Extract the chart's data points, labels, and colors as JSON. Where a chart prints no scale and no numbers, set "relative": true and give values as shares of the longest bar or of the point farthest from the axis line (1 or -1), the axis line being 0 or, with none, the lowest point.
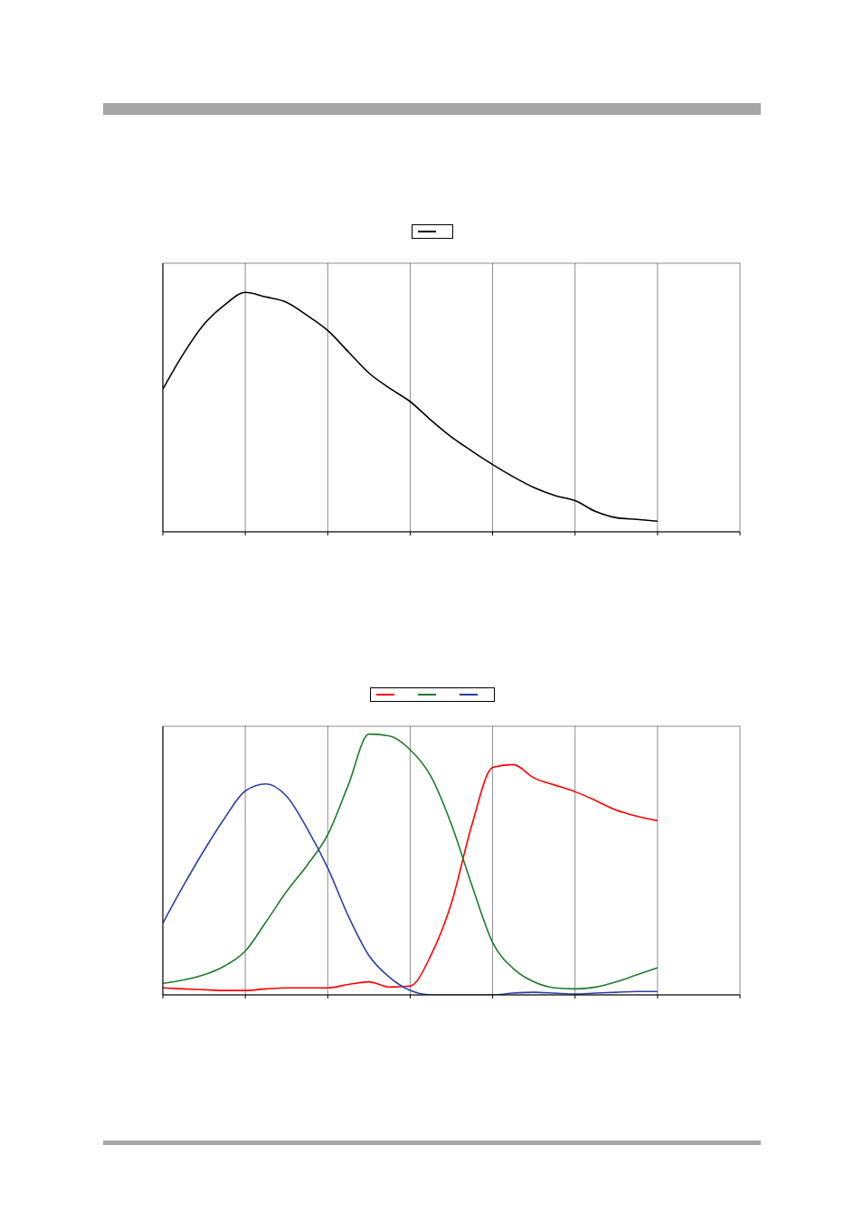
{
  "chart_data": [
    {
      "type": "line",
      "relative": true,
      "grid": true,
      "categories": [
        null,
        null,
        null,
        null,
        null,
        null,
        null,
        null,
        null,
        null,
        null,
        null,
        null,
        null,
        null,
        null,
        null,
        null,
        null,
        null,
        null,
        null,
        null,
        null,
        null,
        null,
        null,
        null,
        null
      ],
      "series": [
        {
          "color": "#000000",
          "values": [
            0.596,
            0.744,
            0.867,
            0.948,
            1,
            0.981,
            0.959,
            0.904,
            0.841,
            0.752,
            0.663,
            0.6,
            0.544,
            0.467,
            0.396,
            0.337,
            0.281,
            0.23,
            0.185,
            0.152,
            0.13,
            0.085,
            0.059,
            0.052,
            0.044,
            null,
            null,
            null,
            null
          ]
        }
      ]
    },
    {
      "type": "line",
      "relative": true,
      "grid": true,
      "categories": [
        null,
        null,
        null,
        null,
        null,
        null,
        null,
        null,
        null,
        null,
        null,
        null,
        null,
        null,
        null,
        null,
        null,
        null,
        null,
        null,
        null,
        null,
        null,
        null,
        null,
        null,
        null,
        null,
        null
      ],
      "series": [
        {
          "color": "#ff0000",
          "values": [
            0.027,
            0.023,
            0.02,
            0.017,
            0.017,
            0.023,
            0.027,
            0.027,
            0.027,
            0.04,
            0.05,
            0.03,
            0.034,
            0.151,
            0.352,
            0.654,
            0.872,
            0.883,
            0.832,
            0.805,
            0.779,
            0.745,
            0.708,
            0.685,
            0.668,
            null,
            null,
            null,
            null
          ]
        },
        {
          "color": "#1e7b2e",
          "values": [
            0.044,
            0.057,
            0.077,
            0.111,
            0.168,
            0.279,
            0.396,
            0.497,
            0.614,
            0.805,
            1,
            0.993,
            0.94,
            0.839,
            0.654,
            0.419,
            0.201,
            0.101,
            0.05,
            0.027,
            0.023,
            0.03,
            0.05,
            0.077,
            0.104,
            null,
            null,
            null,
            null
          ]
        },
        {
          "color": "#2b3fa8",
          "values": [
            0.275,
            0.419,
            0.554,
            0.678,
            0.782,
            0.809,
            0.762,
            0.638,
            0.487,
            0.302,
            0.151,
            0.067,
            0.017,
            0,
            0,
            0,
            0,
            0.007,
            0.01,
            0.007,
            0.003,
            0.007,
            0.01,
            0.013,
            0.013,
            null,
            null,
            null,
            null
          ]
        }
      ]
    }
  ]
}
